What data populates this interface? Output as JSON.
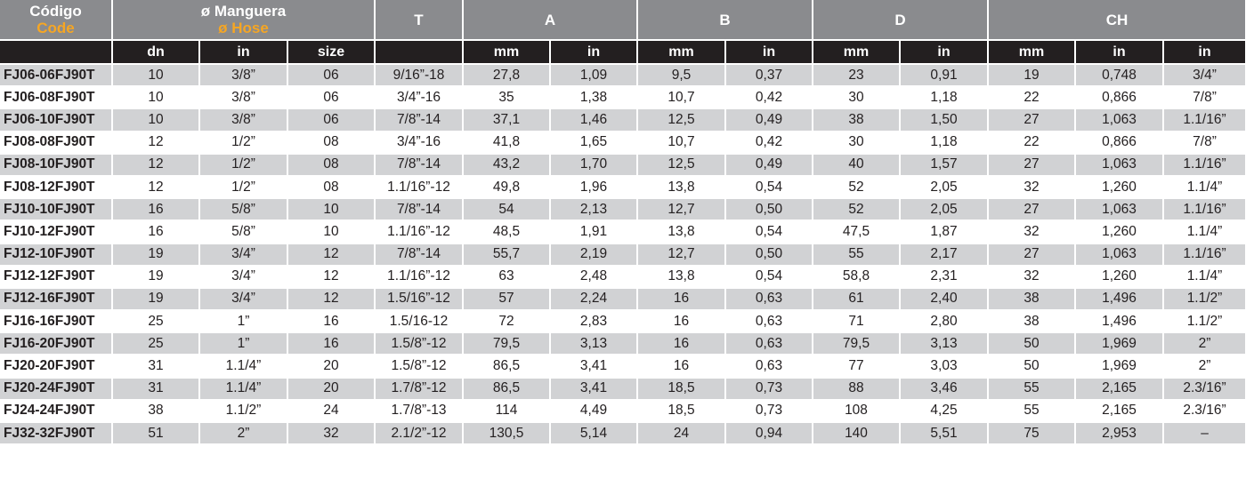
{
  "header": {
    "code_pt": "Código",
    "code_en": "Code",
    "hose_pt": "ø Manguera",
    "hose_en": "ø Hose",
    "t": "T",
    "a": "A",
    "b": "B",
    "d": "D",
    "ch": "CH"
  },
  "subheader": [
    "",
    "dn",
    "in",
    "size",
    "",
    "mm",
    "in",
    "mm",
    "in",
    "mm",
    "in",
    "mm",
    "in",
    "in"
  ],
  "colors": {
    "header_bg": "#8a8b8e",
    "subheader_bg": "#231f20",
    "accent": "#f6a623",
    "row_alt": "#d1d2d4"
  },
  "rows": [
    [
      "FJ06-06FJ90T",
      "10",
      "3/8”",
      "06",
      "9/16”-18",
      "27,8",
      "1,09",
      "9,5",
      "0,37",
      "23",
      "0,91",
      "19",
      "0,748",
      "3/4”"
    ],
    [
      "FJ06-08FJ90T",
      "10",
      "3/8”",
      "06",
      "3/4”-16",
      "35",
      "1,38",
      "10,7",
      "0,42",
      "30",
      "1,18",
      "22",
      "0,866",
      "7/8”"
    ],
    [
      "FJ06-10FJ90T",
      "10",
      "3/8”",
      "06",
      "7/8”-14",
      "37,1",
      "1,46",
      "12,5",
      "0,49",
      "38",
      "1,50",
      "27",
      "1,063",
      "1.1/16”"
    ],
    [
      "FJ08-08FJ90T",
      "12",
      "1/2”",
      "08",
      "3/4”-16",
      "41,8",
      "1,65",
      "10,7",
      "0,42",
      "30",
      "1,18",
      "22",
      "0,866",
      "7/8”"
    ],
    [
      "FJ08-10FJ90T",
      "12",
      "1/2”",
      "08",
      "7/8”-14",
      "43,2",
      "1,70",
      "12,5",
      "0,49",
      "40",
      "1,57",
      "27",
      "1,063",
      "1.1/16”"
    ],
    [
      "FJ08-12FJ90T",
      "12",
      "1/2”",
      "08",
      "1.1/16”-12",
      "49,8",
      "1,96",
      "13,8",
      "0,54",
      "52",
      "2,05",
      "32",
      "1,260",
      "1.1/4”"
    ],
    [
      "FJ10-10FJ90T",
      "16",
      "5/8”",
      "10",
      "7/8”-14",
      "54",
      "2,13",
      "12,7",
      "0,50",
      "52",
      "2,05",
      "27",
      "1,063",
      "1.1/16”"
    ],
    [
      "FJ10-12FJ90T",
      "16",
      "5/8”",
      "10",
      "1.1/16”-12",
      "48,5",
      "1,91",
      "13,8",
      "0,54",
      "47,5",
      "1,87",
      "32",
      "1,260",
      "1.1/4”"
    ],
    [
      "FJ12-10FJ90T",
      "19",
      "3/4”",
      "12",
      "7/8”-14",
      "55,7",
      "2,19",
      "12,7",
      "0,50",
      "55",
      "2,17",
      "27",
      "1,063",
      "1.1/16”"
    ],
    [
      "FJ12-12FJ90T",
      "19",
      "3/4”",
      "12",
      "1.1/16”-12",
      "63",
      "2,48",
      "13,8",
      "0,54",
      "58,8",
      "2,31",
      "32",
      "1,260",
      "1.1/4”"
    ],
    [
      "FJ12-16FJ90T",
      "19",
      "3/4”",
      "12",
      "1.5/16”-12",
      "57",
      "2,24",
      "16",
      "0,63",
      "61",
      "2,40",
      "38",
      "1,496",
      "1.1/2”"
    ],
    [
      "FJ16-16FJ90T",
      "25",
      "1”",
      "16",
      "1.5/16-12",
      "72",
      "2,83",
      "16",
      "0,63",
      "71",
      "2,80",
      "38",
      "1,496",
      "1.1/2”"
    ],
    [
      "FJ16-20FJ90T",
      "25",
      "1”",
      "16",
      "1.5/8”-12",
      "79,5",
      "3,13",
      "16",
      "0,63",
      "79,5",
      "3,13",
      "50",
      "1,969",
      "2”"
    ],
    [
      "FJ20-20FJ90T",
      "31",
      "1.1/4”",
      "20",
      "1.5/8”-12",
      "86,5",
      "3,41",
      "16",
      "0,63",
      "77",
      "3,03",
      "50",
      "1,969",
      "2”"
    ],
    [
      "FJ20-24FJ90T",
      "31",
      "1.1/4”",
      "20",
      "1.7/8”-12",
      "86,5",
      "3,41",
      "18,5",
      "0,73",
      "88",
      "3,46",
      "55",
      "2,165",
      "2.3/16”"
    ],
    [
      "FJ24-24FJ90T",
      "38",
      "1.1/2”",
      "24",
      "1.7/8”-13",
      "114",
      "4,49",
      "18,5",
      "0,73",
      "108",
      "4,25",
      "55",
      "2,165",
      "2.3/16”"
    ],
    [
      "FJ32-32FJ90T",
      "51",
      "2”",
      "32",
      "2.1/2”-12",
      "130,5",
      "5,14",
      "24",
      "0,94",
      "140",
      "5,51",
      "75",
      "2,953",
      "–"
    ]
  ]
}
